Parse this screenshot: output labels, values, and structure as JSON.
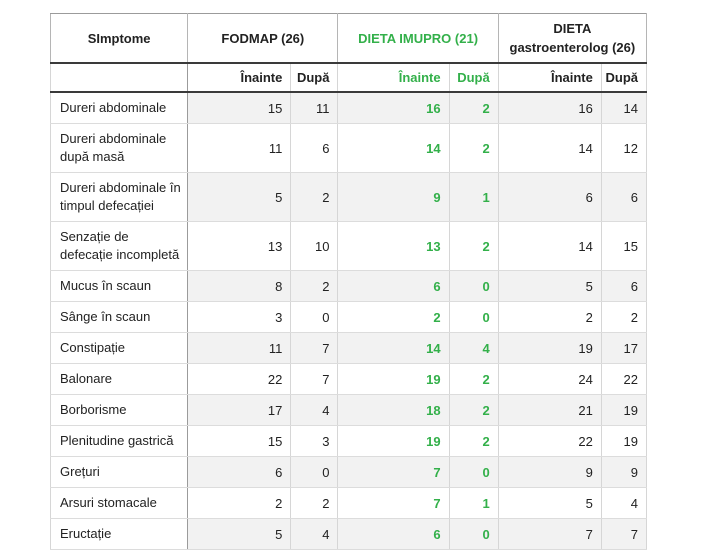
{
  "colors": {
    "accent_green": "#33b04a",
    "text": "#222222",
    "stripe_background": "#f2f2f2"
  },
  "chart_data": {
    "type": "table",
    "symptom_header": "SImptome",
    "groups": [
      {
        "label": "FODMAP (26)",
        "green": false
      },
      {
        "label": "DIETA IMUPRO (21)",
        "green": true
      },
      {
        "label": "DIETA gastroenterolog (26)",
        "green": false
      }
    ],
    "subheaders": {
      "before": "Înainte",
      "after": "După"
    },
    "value_columns": [
      "FODMAP Înainte",
      "FODMAP După",
      "DIETA IMUPRO Înainte",
      "DIETA IMUPRO După",
      "DIETA gastroenterolog Înainte",
      "DIETA gastroenterolog După"
    ],
    "rows": [
      {
        "symptom": "Dureri abdominale",
        "values": [
          15,
          11,
          16,
          2,
          16,
          14
        ]
      },
      {
        "symptom": "Dureri abdominale după masă",
        "values": [
          11,
          6,
          14,
          2,
          14,
          12
        ]
      },
      {
        "symptom": "Dureri abdominale în timpul defecației",
        "values": [
          5,
          2,
          9,
          1,
          6,
          6
        ]
      },
      {
        "symptom": "Senzație de defecație incompletă",
        "values": [
          13,
          10,
          13,
          2,
          14,
          15
        ]
      },
      {
        "symptom": "Mucus în scaun",
        "values": [
          8,
          2,
          6,
          0,
          5,
          6
        ]
      },
      {
        "symptom": "Sânge în scaun",
        "values": [
          3,
          0,
          2,
          0,
          2,
          2
        ]
      },
      {
        "symptom": "Constipație",
        "values": [
          11,
          7,
          14,
          4,
          19,
          17
        ]
      },
      {
        "symptom": "Balonare",
        "values": [
          22,
          7,
          19,
          2,
          24,
          22
        ]
      },
      {
        "symptom": "Borborisme",
        "values": [
          17,
          4,
          18,
          2,
          21,
          19
        ]
      },
      {
        "symptom": "Plenitudine gastrică",
        "values": [
          15,
          3,
          19,
          2,
          22,
          19
        ]
      },
      {
        "symptom": "Grețuri",
        "values": [
          6,
          0,
          7,
          0,
          9,
          9
        ]
      },
      {
        "symptom": "Arsuri stomacale",
        "values": [
          2,
          2,
          7,
          1,
          5,
          4
        ]
      },
      {
        "symptom": "Eructație",
        "values": [
          5,
          4,
          6,
          0,
          7,
          7
        ]
      }
    ]
  }
}
